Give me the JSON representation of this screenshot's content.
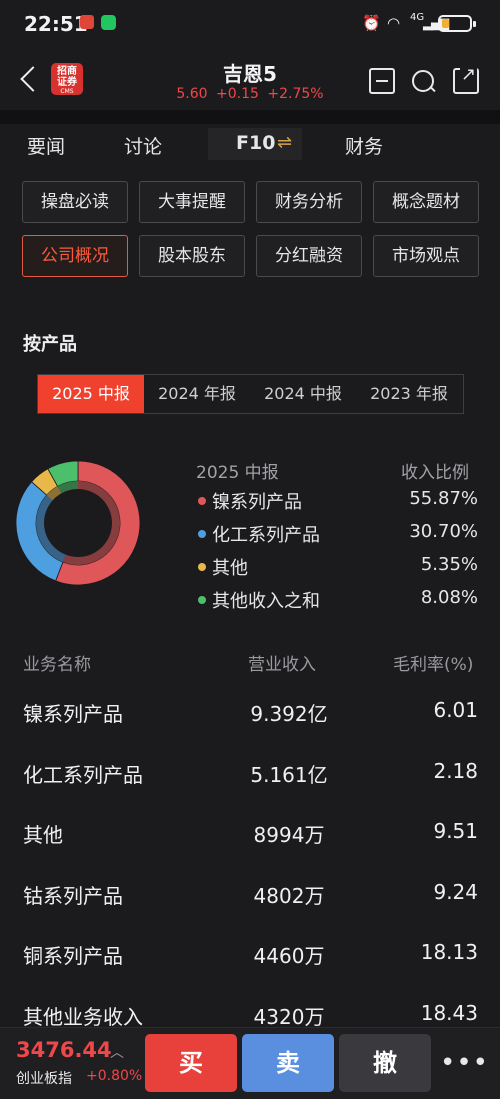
{
  "status": {
    "time": "22:51",
    "network": "4G"
  },
  "header": {
    "logo_line1": "招商",
    "logo_line2": "证券",
    "logo_sub": "CMS",
    "stock_name": "吉恩5",
    "price": "5.60",
    "change": "+0.15",
    "change_pct": "+2.75%"
  },
  "tabs": [
    {
      "label": "要闻"
    },
    {
      "label": "讨论"
    },
    {
      "label": "F10"
    },
    {
      "label": "财务"
    }
  ],
  "grid": [
    {
      "label": "操盘必读",
      "active": false
    },
    {
      "label": "大事提醒",
      "active": false
    },
    {
      "label": "财务分析",
      "active": false
    },
    {
      "label": "概念题材",
      "active": false
    },
    {
      "label": "公司概况",
      "active": true
    },
    {
      "label": "股本股东",
      "active": false
    },
    {
      "label": "分红融资",
      "active": false
    },
    {
      "label": "市场观点",
      "active": false
    }
  ],
  "section_title": "按产品",
  "periods": [
    {
      "label": "2025 中报",
      "active": true
    },
    {
      "label": "2024 年报",
      "active": false
    },
    {
      "label": "2024 中报",
      "active": false
    },
    {
      "label": "2023 年报",
      "active": false
    }
  ],
  "legend": {
    "period_label": "2025 中报",
    "ratio_label": "收入比例"
  },
  "chart_data": {
    "type": "pie",
    "categories": [
      "镍系列产品",
      "化工系列产品",
      "其他",
      "其他收入之和"
    ],
    "values": [
      55.87,
      30.7,
      5.35,
      8.08
    ],
    "value_labels": [
      "55.87%",
      "30.70%",
      "5.35%",
      "8.08%"
    ],
    "colors": [
      "#e0575a",
      "#4e9fe0",
      "#e9b84b",
      "#4cbf6b"
    ],
    "legend_position": "right"
  },
  "table": {
    "headers": {
      "name": "业务名称",
      "revenue": "营业收入",
      "margin": "毛利率(%)"
    },
    "rows": [
      {
        "name": "镍系列产品",
        "revenue": "9.392亿",
        "margin": "6.01"
      },
      {
        "name": "化工系列产品",
        "revenue": "5.161亿",
        "margin": "2.18"
      },
      {
        "name": "其他",
        "revenue": "8994万",
        "margin": "9.51"
      },
      {
        "name": "钴系列产品",
        "revenue": "4802万",
        "margin": "9.24"
      },
      {
        "name": "铜系列产品",
        "revenue": "4460万",
        "margin": "18.13"
      },
      {
        "name": "其他业务收入",
        "revenue": "4320万",
        "margin": "18.43"
      }
    ]
  },
  "bottom": {
    "index_value": "3476.44",
    "index_name": "创业板指",
    "index_change": "+0.80%",
    "buy_label": "买",
    "sell_label": "卖",
    "cancel_label": "撤",
    "more_label": "•••"
  }
}
